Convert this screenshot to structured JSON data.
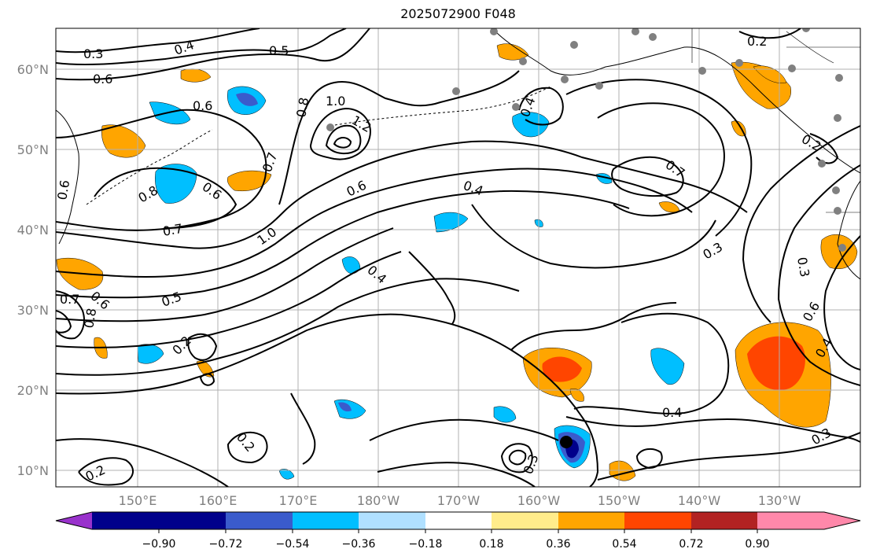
{
  "title": "2025072900 F048",
  "lat_labels": [
    "60°N",
    "50°N",
    "40°N",
    "30°N",
    "20°N",
    "10°N"
  ],
  "lon_labels": [
    "150°E",
    "160°E",
    "170°E",
    "180°W",
    "170°W",
    "160°W",
    "150°W",
    "140°W",
    "130°W"
  ],
  "colorbar": {
    "ticks": [
      "−0.90",
      "−0.72",
      "−0.54",
      "−0.36",
      "−0.18",
      "0.18",
      "0.36",
      "0.54",
      "0.72",
      "0.90"
    ],
    "colors": [
      "#9932cc",
      "#00008b",
      "#3a5bcc",
      "#00bfff",
      "#b0e0ff",
      "#ffffff",
      "#ffec8b",
      "#ffa500",
      "#ff4500",
      "#b22222",
      "#ff88aa"
    ]
  },
  "contour_labels": [
    "0.3",
    "0.4",
    "0.5",
    "0.6",
    "0.6",
    "0.8",
    "1.0",
    "1.2",
    "0.7",
    "0.6",
    "0.8",
    "0.7",
    "0.6",
    "1.0",
    "0.4",
    "0.7",
    "0.3",
    "0.4",
    "0.5",
    "0.7",
    "0.6",
    "0.8",
    "0.2",
    "0.4",
    "0.2",
    "0.3",
    "0.2",
    "0.4",
    "0.3",
    "0.6",
    "0.4",
    "0.3",
    "0.2",
    "0.2",
    "0.6"
  ],
  "colors": {
    "contour": "#000000",
    "grid": "#b0b0b0",
    "coast": "#000000",
    "station": "#808080"
  }
}
